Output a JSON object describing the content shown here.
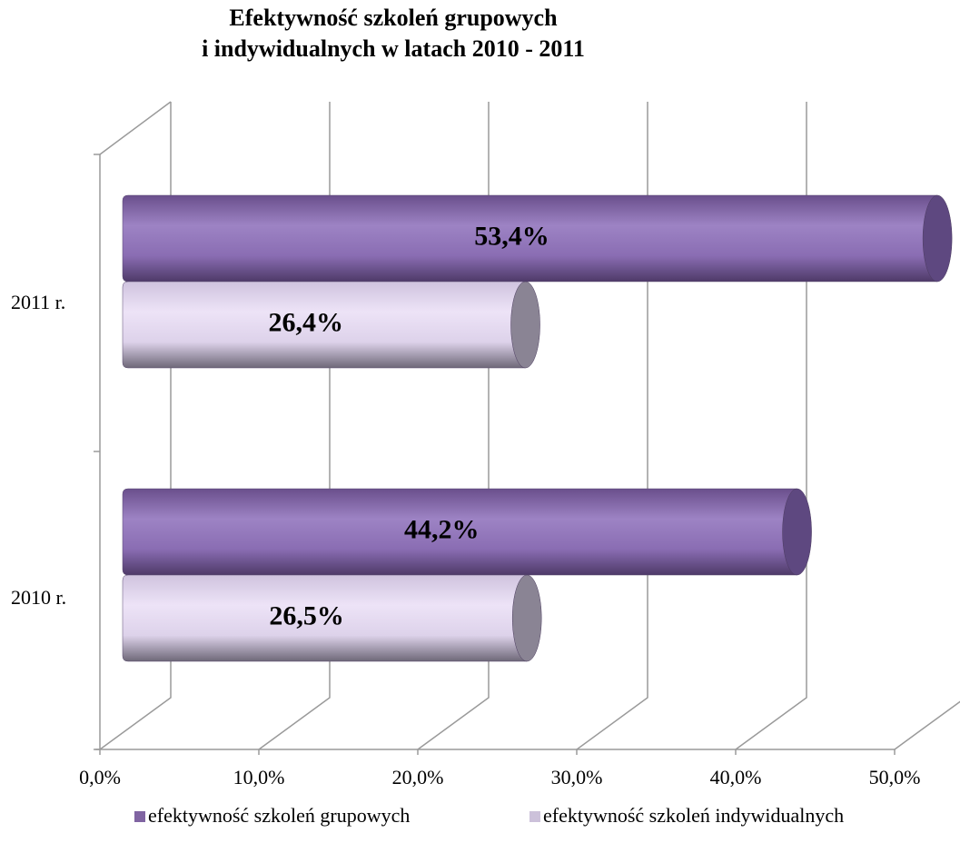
{
  "chart_data": {
    "type": "bar3d",
    "title": "Efektywność szkoleń grupowych",
    "subtitle": "i indywidualnych w latach 2010 - 2011",
    "categories": [
      "2010 r.",
      "2011 r."
    ],
    "series": [
      {
        "name": "efektywność szkoleń grupowych",
        "color": "#8064a2",
        "values": [
          44.2,
          53.4
        ],
        "value_labels": [
          "44,2%",
          "53,4%"
        ]
      },
      {
        "name": "efektywność szkoleń indywidualnych",
        "color": "#ccc1da",
        "values": [
          26.5,
          26.4
        ],
        "value_labels": [
          "26,5%",
          "26,4%"
        ]
      }
    ],
    "xlim": [
      0,
      50
    ],
    "xticks": [
      {
        "value": 0,
        "label": "0,0%"
      },
      {
        "value": 10,
        "label": "10,0%"
      },
      {
        "value": 20,
        "label": "20,0%"
      },
      {
        "value": 30,
        "label": "30,0%"
      },
      {
        "value": 40,
        "label": "40,0%"
      },
      {
        "value": 50,
        "label": "50,0%"
      }
    ],
    "grid": true,
    "legend": "bottom"
  }
}
